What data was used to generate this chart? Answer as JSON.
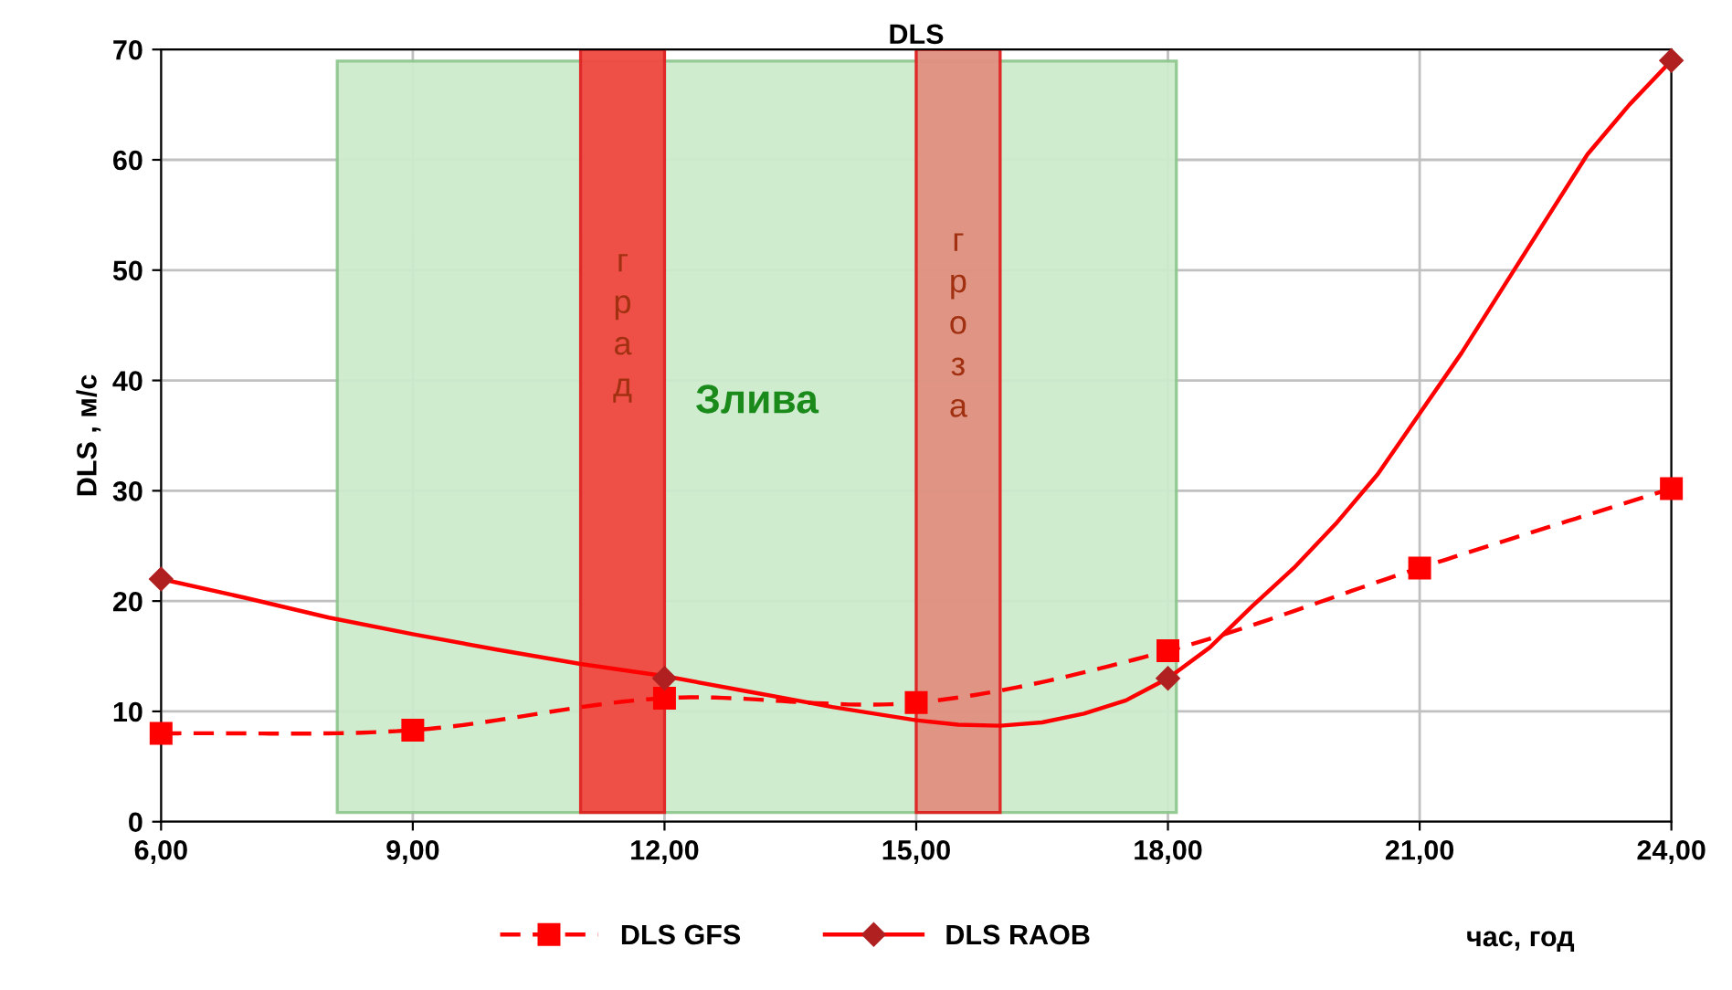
{
  "chart_data": {
    "type": "line",
    "title": "DLS",
    "xlabel": "час, год",
    "ylabel": "DLS , м/с",
    "xlim": [
      6,
      24
    ],
    "xticks": [
      {
        "value": 6,
        "label": "6,00"
      },
      {
        "value": 9,
        "label": "9,00"
      },
      {
        "value": 12,
        "label": "12,00"
      },
      {
        "value": 15,
        "label": "15,00"
      },
      {
        "value": 18,
        "label": "18,00"
      },
      {
        "value": 21,
        "label": "21,00"
      },
      {
        "value": 24,
        "label": "24,00"
      }
    ],
    "ylim": [
      0,
      70
    ],
    "yticks": [
      0,
      10,
      20,
      30,
      40,
      50,
      60,
      70
    ],
    "grid": true,
    "legend": "bottom",
    "series": [
      {
        "name": "DLS GFS",
        "color": "#ff0000",
        "marker": "square",
        "line_style": "dashed",
        "x": [
          6,
          9,
          12,
          15,
          18,
          21,
          24
        ],
        "values": [
          8,
          8.3,
          11.2,
          10.8,
          15.5,
          23,
          30.2
        ]
      },
      {
        "name": "DLS RAOB",
        "color": "#ff0000",
        "marker": "none",
        "line_style": "solid",
        "x": [
          6,
          7,
          8,
          9,
          10,
          11,
          12,
          13,
          14,
          15,
          15.5,
          16,
          16.5,
          17,
          17.5,
          18,
          18.5,
          19,
          19.5,
          20,
          20.5,
          21,
          21.5,
          22,
          22.5,
          23,
          23.5,
          24
        ],
        "values": [
          22,
          20.3,
          18.5,
          17,
          15.6,
          14.3,
          13.2,
          11.8,
          10.4,
          9.2,
          8.8,
          8.7,
          9,
          9.8,
          11,
          13,
          15.8,
          19.5,
          23,
          27,
          31.5,
          37,
          42.5,
          48.5,
          54.5,
          60.5,
          65,
          69
        ]
      },
      {
        "type": "scatter",
        "color": "#b02020",
        "marker": "diamond",
        "x": [
          6,
          12,
          18,
          24
        ],
        "values": [
          22,
          13,
          13,
          69
        ]
      }
    ],
    "bands": [
      {
        "axis": "x",
        "from": 8.1,
        "to": 18.1,
        "label": "Злива",
        "color": "#cdebcd"
      },
      {
        "axis": "x",
        "from": 11,
        "to": 12,
        "label": "град",
        "color": "#f04840"
      },
      {
        "axis": "x",
        "from": 15,
        "to": 16,
        "label": "гроза",
        "color": "#e09080"
      }
    ]
  }
}
